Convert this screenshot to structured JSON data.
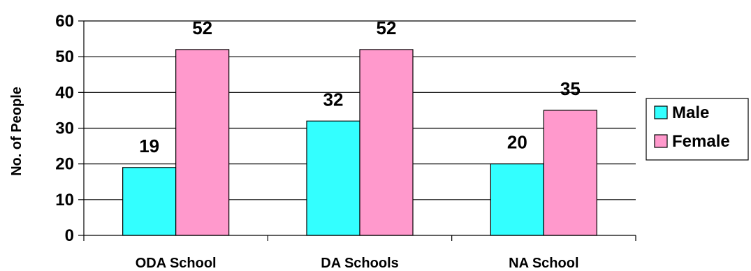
{
  "chart_data": {
    "type": "bar",
    "categories": [
      "ODA School",
      "DA Schools",
      "NA School"
    ],
    "series": [
      {
        "name": "Male",
        "values": [
          19,
          32,
          20
        ],
        "color": "#33FFFF"
      },
      {
        "name": "Female",
        "values": [
          52,
          52,
          35
        ],
        "color": "#FF99CC"
      }
    ],
    "title": "",
    "xlabel": "",
    "ylabel": "No. of People",
    "ylim": [
      0,
      60
    ],
    "yticks": [
      0,
      10,
      20,
      30,
      40,
      50,
      60
    ],
    "grid": true,
    "legend": "right"
  }
}
